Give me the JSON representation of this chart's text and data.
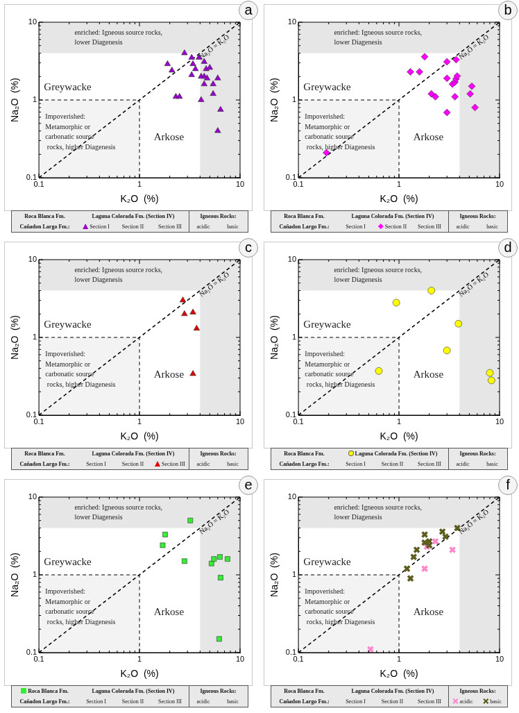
{
  "chart_data": [
    {
      "type": "scatter",
      "xlabel": "K₂O  (%)",
      "ylabel": "Na₂O  (%)",
      "log": "xy",
      "grid": false,
      "legend": "bottom",
      "xlim": [
        0.1,
        10
      ],
      "ylim": [
        0.1,
        10
      ],
      "xticks": [
        0.1,
        {
          "value": 0.2,
          "label": null
        },
        {
          "value": 0.3,
          "label": null
        },
        {
          "value": 0.4,
          "label": null
        },
        {
          "value": 0.5,
          "label": null
        },
        {
          "value": 0.6,
          "label": null
        },
        {
          "value": 0.7,
          "label": null
        },
        {
          "value": 0.8,
          "label": null
        },
        {
          "value": 0.9,
          "label": null
        },
        1,
        {
          "value": 2,
          "label": null
        },
        {
          "value": 3,
          "label": null
        },
        {
          "value": 4,
          "label": null
        },
        {
          "value": 5,
          "label": null
        },
        {
          "value": 6,
          "label": null
        },
        {
          "value": 7,
          "label": null
        },
        {
          "value": 8,
          "label": null
        },
        {
          "value": 9,
          "label": null
        },
        10
      ],
      "yticks": [
        0.1,
        {
          "value": 0.2,
          "label": null
        },
        {
          "value": 0.3,
          "label": null
        },
        {
          "value": 0.4,
          "label": null
        },
        {
          "value": 0.5,
          "label": null
        },
        {
          "value": 0.6,
          "label": null
        },
        {
          "value": 0.7,
          "label": null
        },
        {
          "value": 0.8,
          "label": null
        },
        {
          "value": 0.9,
          "label": null
        },
        1,
        {
          "value": 2,
          "label": null
        },
        {
          "value": 3,
          "label": null
        },
        {
          "value": 4,
          "label": null
        },
        {
          "value": 5,
          "label": null
        },
        {
          "value": 6,
          "label": null
        },
        {
          "value": 7,
          "label": null
        },
        {
          "value": 8,
          "label": null
        },
        {
          "value": 9,
          "label": null
        },
        10
      ],
      "bands": [
        {
          "axis": "y",
          "from": 4,
          "to": 10,
          "label": "enriched: Igneous source rocks,\nlower Diagenesis",
          "color": "#e6e6e6"
        },
        {
          "axis": "x",
          "from": 4,
          "to": 10,
          "color": "#e6e6e6"
        }
      ],
      "annotations": [
        "Greywacke",
        "Arkose",
        "Impoverished:\nMetamorphic or\ncarbonatic source\n rocks, higher Diagenesis",
        "a",
        "Roca Blanca Fm.",
        "Laguna Colorada Fm. (Section IV)",
        "Igneous Rocks:",
        "Cañadon Largo Fm.:",
        "Section II",
        "Section III",
        "acidic",
        "basic"
      ],
      "series": [
        {
          "type": "area",
          "color": "#f3f3f3",
          "line_style": "dashed",
          "x": [
            0.1,
            1,
            1
          ],
          "values": [
            1,
            1,
            0.1
          ]
        },
        {
          "type": "line",
          "name": "Na₂O = K₂O",
          "color": "#000000",
          "line_style": "dashed",
          "marker": "none",
          "x": [
            0.1,
            10
          ],
          "values": [
            0.1,
            10
          ]
        },
        {
          "name": "Section I",
          "color": "#9900cc",
          "marker": "triangle",
          "x": [
            2.8,
            1.9,
            2.1,
            2.3,
            2.5,
            3.3,
            3.4,
            3.6,
            3.3,
            3.9,
            4.4,
            4.6,
            5.0,
            4.1,
            4.4,
            4.7,
            4.4,
            5.4,
            6.0,
            5.4,
            4.1,
            6.4,
            6.0
          ],
          "values": [
            4.0,
            2.9,
            2.4,
            1.1,
            1.1,
            3.5,
            2.9,
            2.5,
            2.1,
            3.5,
            3.1,
            2.5,
            2.6,
            2.0,
            2.0,
            1.9,
            1.6,
            1.6,
            1.9,
            1.2,
            1.0,
            0.75,
            0.4
          ]
        }
      ]
    },
    {
      "type": "scatter",
      "xlabel": "K₂O  (%)",
      "ylabel": "Na₂O  (%)",
      "log": "xy",
      "grid": false,
      "legend": "bottom",
      "xlim": [
        0.1,
        10
      ],
      "ylim": [
        0.1,
        10
      ],
      "xticks": [
        0.1,
        {
          "value": 0.2,
          "label": null
        },
        {
          "value": 0.3,
          "label": null
        },
        {
          "value": 0.4,
          "label": null
        },
        {
          "value": 0.5,
          "label": null
        },
        {
          "value": 0.6,
          "label": null
        },
        {
          "value": 0.7,
          "label": null
        },
        {
          "value": 0.8,
          "label": null
        },
        {
          "value": 0.9,
          "label": null
        },
        1,
        {
          "value": 2,
          "label": null
        },
        {
          "value": 3,
          "label": null
        },
        {
          "value": 4,
          "label": null
        },
        {
          "value": 5,
          "label": null
        },
        {
          "value": 6,
          "label": null
        },
        {
          "value": 7,
          "label": null
        },
        {
          "value": 8,
          "label": null
        },
        {
          "value": 9,
          "label": null
        },
        10
      ],
      "yticks": [
        0.1,
        {
          "value": 0.2,
          "label": null
        },
        {
          "value": 0.3,
          "label": null
        },
        {
          "value": 0.4,
          "label": null
        },
        {
          "value": 0.5,
          "label": null
        },
        {
          "value": 0.6,
          "label": null
        },
        {
          "value": 0.7,
          "label": null
        },
        {
          "value": 0.8,
          "label": null
        },
        {
          "value": 0.9,
          "label": null
        },
        1,
        {
          "value": 2,
          "label": null
        },
        {
          "value": 3,
          "label": null
        },
        {
          "value": 4,
          "label": null
        },
        {
          "value": 5,
          "label": null
        },
        {
          "value": 6,
          "label": null
        },
        {
          "value": 7,
          "label": null
        },
        {
          "value": 8,
          "label": null
        },
        {
          "value": 9,
          "label": null
        },
        10
      ],
      "bands": [
        {
          "axis": "y",
          "from": 4,
          "to": 10,
          "label": "enriched: Igneous source rocks,\nlower Diagenesis",
          "color": "#e6e6e6"
        },
        {
          "axis": "x",
          "from": 4,
          "to": 10,
          "color": "#e6e6e6"
        }
      ],
      "annotations": [
        "Greywacke",
        "Arkose",
        "Impoverished:\nMetamorphic or\ncarbonatic source\n rocks, higher Diagenesis",
        "b",
        "Roca Blanca Fm.",
        "Laguna Colorada Fm. (Section IV)",
        "Igneous Rocks:",
        "Cañadon Largo Fm.:",
        "Section I",
        "Section III",
        "acidic",
        "basic"
      ],
      "series": [
        {
          "type": "area",
          "color": "#f3f3f3",
          "line_style": "dashed",
          "x": [
            0.1,
            1,
            1
          ],
          "values": [
            1,
            1,
            0.1
          ]
        },
        {
          "type": "line",
          "name": "Na₂O = K₂O",
          "color": "#000000",
          "line_style": "dashed",
          "marker": "none",
          "x": [
            0.1,
            10
          ],
          "values": [
            0.1,
            10
          ]
        },
        {
          "name": "Section II",
          "color": "#ff00ff",
          "marker": "diamond",
          "x": [
            0.19,
            1.3,
            1.6,
            1.8,
            2.1,
            2.3,
            3.0,
            3.7,
            3.0,
            3.4,
            3.6,
            3.69,
            3.79,
            3.6,
            3.0,
            5.1,
            5.3,
            5.7
          ],
          "values": [
            0.21,
            2.3,
            2.3,
            3.6,
            1.2,
            1.1,
            3.1,
            3.3,
            1.9,
            1.6,
            1.7,
            1.86,
            2.03,
            1.1,
            0.69,
            1.2,
            1.5,
            0.8
          ]
        }
      ]
    },
    {
      "type": "scatter",
      "xlabel": "K₂O  (%)",
      "ylabel": "Na₂O  (%)",
      "log": "xy",
      "grid": false,
      "legend": "bottom",
      "xlim": [
        0.1,
        10
      ],
      "ylim": [
        0.1,
        10
      ],
      "xticks": [
        0.1,
        {
          "value": 0.2,
          "label": null
        },
        {
          "value": 0.3,
          "label": null
        },
        {
          "value": 0.4,
          "label": null
        },
        {
          "value": 0.5,
          "label": null
        },
        {
          "value": 0.6,
          "label": null
        },
        {
          "value": 0.7,
          "label": null
        },
        {
          "value": 0.8,
          "label": null
        },
        {
          "value": 0.9,
          "label": null
        },
        1,
        {
          "value": 2,
          "label": null
        },
        {
          "value": 3,
          "label": null
        },
        {
          "value": 4,
          "label": null
        },
        {
          "value": 5,
          "label": null
        },
        {
          "value": 6,
          "label": null
        },
        {
          "value": 7,
          "label": null
        },
        {
          "value": 8,
          "label": null
        },
        {
          "value": 9,
          "label": null
        },
        10
      ],
      "yticks": [
        0.1,
        {
          "value": 0.2,
          "label": null
        },
        {
          "value": 0.3,
          "label": null
        },
        {
          "value": 0.4,
          "label": null
        },
        {
          "value": 0.5,
          "label": null
        },
        {
          "value": 0.6,
          "label": null
        },
        {
          "value": 0.7,
          "label": null
        },
        {
          "value": 0.8,
          "label": null
        },
        {
          "value": 0.9,
          "label": null
        },
        1,
        {
          "value": 2,
          "label": null
        },
        {
          "value": 3,
          "label": null
        },
        {
          "value": 4,
          "label": null
        },
        {
          "value": 5,
          "label": null
        },
        {
          "value": 6,
          "label": null
        },
        {
          "value": 7,
          "label": null
        },
        {
          "value": 8,
          "label": null
        },
        {
          "value": 9,
          "label": null
        },
        10
      ],
      "bands": [
        {
          "axis": "y",
          "from": 4,
          "to": 10,
          "label": "enriched: Igneous source rocks,\nlower Diagenesis",
          "color": "#e6e6e6"
        },
        {
          "axis": "x",
          "from": 4,
          "to": 10,
          "color": "#e6e6e6"
        }
      ],
      "annotations": [
        "Greywacke",
        "Arkose",
        "Impoverished:\nMetamorphic or\ncarbonatic source\n rocks, higher Diagenesis",
        "c",
        "Roca Blanca Fm.",
        "Laguna Colorada Fm. (Section IV)",
        "Igneous Rocks:",
        "Cañadon Largo Fm.:",
        "Section I",
        "Section II",
        "acidic",
        "basic"
      ],
      "series": [
        {
          "type": "area",
          "color": "#f3f3f3",
          "line_style": "dashed",
          "x": [
            0.1,
            1,
            1
          ],
          "values": [
            1,
            1,
            0.1
          ]
        },
        {
          "type": "line",
          "name": "Na₂O = K₂O",
          "color": "#000000",
          "line_style": "dashed",
          "marker": "none",
          "x": [
            0.1,
            10
          ],
          "values": [
            0.1,
            10
          ]
        },
        {
          "name": "Section III",
          "color": "#e00000",
          "marker": "triangle",
          "x": [
            2.7,
            2.8,
            3.4,
            3.7,
            3.4
          ],
          "values": [
            3.0,
            2.0,
            2.1,
            1.3,
            0.34
          ]
        }
      ]
    },
    {
      "type": "scatter",
      "xlabel": "K₂O  (%)",
      "ylabel": "Na₂O  (%)",
      "log": "xy",
      "grid": false,
      "legend": "bottom",
      "xlim": [
        0.1,
        10
      ],
      "ylim": [
        0.1,
        10
      ],
      "xticks": [
        0.1,
        {
          "value": 0.2,
          "label": null
        },
        {
          "value": 0.3,
          "label": null
        },
        {
          "value": 0.4,
          "label": null
        },
        {
          "value": 0.5,
          "label": null
        },
        {
          "value": 0.6,
          "label": null
        },
        {
          "value": 0.7,
          "label": null
        },
        {
          "value": 0.8,
          "label": null
        },
        {
          "value": 0.9,
          "label": null
        },
        1,
        {
          "value": 2,
          "label": null
        },
        {
          "value": 3,
          "label": null
        },
        {
          "value": 4,
          "label": null
        },
        {
          "value": 5,
          "label": null
        },
        {
          "value": 6,
          "label": null
        },
        {
          "value": 7,
          "label": null
        },
        {
          "value": 8,
          "label": null
        },
        {
          "value": 9,
          "label": null
        },
        10
      ],
      "yticks": [
        0.1,
        {
          "value": 0.2,
          "label": null
        },
        {
          "value": 0.3,
          "label": null
        },
        {
          "value": 0.4,
          "label": null
        },
        {
          "value": 0.5,
          "label": null
        },
        {
          "value": 0.6,
          "label": null
        },
        {
          "value": 0.7,
          "label": null
        },
        {
          "value": 0.8,
          "label": null
        },
        {
          "value": 0.9,
          "label": null
        },
        1,
        {
          "value": 2,
          "label": null
        },
        {
          "value": 3,
          "label": null
        },
        {
          "value": 4,
          "label": null
        },
        {
          "value": 5,
          "label": null
        },
        {
          "value": 6,
          "label": null
        },
        {
          "value": 7,
          "label": null
        },
        {
          "value": 8,
          "label": null
        },
        {
          "value": 9,
          "label": null
        },
        10
      ],
      "bands": [
        {
          "axis": "y",
          "from": 4,
          "to": 10,
          "label": "enriched: Igneous source rocks,\nlower Diagenesis",
          "color": "#e6e6e6"
        },
        {
          "axis": "x",
          "from": 4,
          "to": 10,
          "color": "#e6e6e6"
        }
      ],
      "annotations": [
        "Greywacke",
        "Arkose",
        "Impoverished:\nMetamorphic or\ncarbonatic source\n rocks, higher Diagenesis",
        "d",
        "Roca Blanca Fm.",
        "Igneous Rocks:",
        "Cañadon Largo Fm.:",
        "Section I",
        "Section II",
        "Section III",
        "acidic",
        "basic"
      ],
      "series": [
        {
          "type": "area",
          "color": "#f3f3f3",
          "line_style": "dashed",
          "x": [
            0.1,
            1,
            1
          ],
          "values": [
            1,
            1,
            0.1
          ]
        },
        {
          "type": "line",
          "name": "Na₂O = K₂O",
          "color": "#000000",
          "line_style": "dashed",
          "marker": "none",
          "x": [
            0.1,
            10
          ],
          "values": [
            0.1,
            10
          ]
        },
        {
          "name": "Laguna Colorada Fm. (Section IV)",
          "color": "#ffff00",
          "marker": "circle",
          "x": [
            0.63,
            0.94,
            2.1,
            3.9,
            3.0,
            8.0,
            8.3
          ],
          "values": [
            0.37,
            2.8,
            4.0,
            1.5,
            0.68,
            0.35,
            0.28
          ]
        }
      ]
    },
    {
      "type": "scatter",
      "xlabel": "K₂O  (%)",
      "ylabel": "Na₂O  (%)",
      "log": "xy",
      "grid": false,
      "legend": "bottom",
      "xlim": [
        0.1,
        10
      ],
      "ylim": [
        0.1,
        10
      ],
      "xticks": [
        0.1,
        {
          "value": 0.2,
          "label": null
        },
        {
          "value": 0.3,
          "label": null
        },
        {
          "value": 0.4,
          "label": null
        },
        {
          "value": 0.5,
          "label": null
        },
        {
          "value": 0.6,
          "label": null
        },
        {
          "value": 0.7,
          "label": null
        },
        {
          "value": 0.8,
          "label": null
        },
        {
          "value": 0.9,
          "label": null
        },
        1,
        {
          "value": 2,
          "label": null
        },
        {
          "value": 3,
          "label": null
        },
        {
          "value": 4,
          "label": null
        },
        {
          "value": 5,
          "label": null
        },
        {
          "value": 6,
          "label": null
        },
        {
          "value": 7,
          "label": null
        },
        {
          "value": 8,
          "label": null
        },
        {
          "value": 9,
          "label": null
        },
        10
      ],
      "yticks": [
        0.1,
        {
          "value": 0.2,
          "label": null
        },
        {
          "value": 0.3,
          "label": null
        },
        {
          "value": 0.4,
          "label": null
        },
        {
          "value": 0.5,
          "label": null
        },
        {
          "value": 0.6,
          "label": null
        },
        {
          "value": 0.7,
          "label": null
        },
        {
          "value": 0.8,
          "label": null
        },
        {
          "value": 0.9,
          "label": null
        },
        1,
        {
          "value": 2,
          "label": null
        },
        {
          "value": 3,
          "label": null
        },
        {
          "value": 4,
          "label": null
        },
        {
          "value": 5,
          "label": null
        },
        {
          "value": 6,
          "label": null
        },
        {
          "value": 7,
          "label": null
        },
        {
          "value": 8,
          "label": null
        },
        {
          "value": 9,
          "label": null
        },
        10
      ],
      "bands": [
        {
          "axis": "y",
          "from": 4,
          "to": 10,
          "label": "enriched: Igneous source rocks,\nlower Diagenesis",
          "color": "#e6e6e6"
        },
        {
          "axis": "x",
          "from": 4,
          "to": 10,
          "color": "#e6e6e6"
        }
      ],
      "annotations": [
        "Greywacke",
        "Arkose",
        "Impoverished:\nMetamorphic or\ncarbonatic source\n rocks, higher Diagenesis",
        "e",
        "Laguna Colorada Fm. (Section IV)",
        "Igneous Rocks:",
        "Cañadon Largo Fm.:",
        "Section I",
        "Section II",
        "Section III",
        "acidic",
        "basic"
      ],
      "series": [
        {
          "type": "area",
          "color": "#f3f3f3",
          "line_style": "dashed",
          "x": [
            0.1,
            1,
            1
          ],
          "values": [
            1,
            1,
            0.1
          ]
        },
        {
          "type": "line",
          "name": "Na₂O = K₂O",
          "color": "#000000",
          "line_style": "dashed",
          "marker": "none",
          "x": [
            0.1,
            10
          ],
          "values": [
            0.1,
            10
          ]
        },
        {
          "name": "Roca Blanca Fm.",
          "color": "#33ee33",
          "marker": "square",
          "x": [
            3.2,
            1.8,
            1.7,
            2.8,
            5.2,
            5.5,
            6.3,
            7.5,
            6.4,
            6.2
          ],
          "values": [
            5.0,
            3.3,
            2.4,
            1.5,
            1.4,
            1.6,
            1.7,
            1.6,
            0.92,
            0.15
          ]
        }
      ]
    },
    {
      "type": "scatter",
      "xlabel": "K₂O  (%)",
      "ylabel": "Na₂O  (%)",
      "log": "xy",
      "grid": false,
      "legend": "bottom",
      "xlim": [
        0.1,
        10
      ],
      "ylim": [
        0.1,
        10
      ],
      "xticks": [
        0.1,
        {
          "value": 0.2,
          "label": null
        },
        {
          "value": 0.3,
          "label": null
        },
        {
          "value": 0.4,
          "label": null
        },
        {
          "value": 0.5,
          "label": null
        },
        {
          "value": 0.6,
          "label": null
        },
        {
          "value": 0.7,
          "label": null
        },
        {
          "value": 0.8,
          "label": null
        },
        {
          "value": 0.9,
          "label": null
        },
        1,
        {
          "value": 2,
          "label": null
        },
        {
          "value": 3,
          "label": null
        },
        {
          "value": 4,
          "label": null
        },
        {
          "value": 5,
          "label": null
        },
        {
          "value": 6,
          "label": null
        },
        {
          "value": 7,
          "label": null
        },
        {
          "value": 8,
          "label": null
        },
        {
          "value": 9,
          "label": null
        },
        10
      ],
      "yticks": [
        0.1,
        {
          "value": 0.2,
          "label": null
        },
        {
          "value": 0.3,
          "label": null
        },
        {
          "value": 0.4,
          "label": null
        },
        {
          "value": 0.5,
          "label": null
        },
        {
          "value": 0.6,
          "label": null
        },
        {
          "value": 0.7,
          "label": null
        },
        {
          "value": 0.8,
          "label": null
        },
        {
          "value": 0.9,
          "label": null
        },
        1,
        {
          "value": 2,
          "label": null
        },
        {
          "value": 3,
          "label": null
        },
        {
          "value": 4,
          "label": null
        },
        {
          "value": 5,
          "label": null
        },
        {
          "value": 6,
          "label": null
        },
        {
          "value": 7,
          "label": null
        },
        {
          "value": 8,
          "label": null
        },
        {
          "value": 9,
          "label": null
        },
        10
      ],
      "bands": [
        {
          "axis": "y",
          "from": 4,
          "to": 10,
          "label": "enriched: Igneous source rocks,\nlower Diagenesis",
          "color": "#e6e6e6"
        },
        {
          "axis": "x",
          "from": 4,
          "to": 10,
          "color": "#e6e6e6"
        }
      ],
      "annotations": [
        "Greywacke",
        "Arkose",
        "Impoverished:\nMetamorphic or\ncarbonatic source\n rocks, higher Diagenesis",
        "f",
        "Roca Blanca Fm.",
        "Laguna Colorada Fm. (Section IV)",
        "Igneous Rocks:",
        "Cañadon Largo Fm.:",
        "Section I",
        "Section II",
        "Section III"
      ],
      "series": [
        {
          "type": "area",
          "color": "#f3f3f3",
          "line_style": "dashed",
          "x": [
            0.1,
            1,
            1
          ],
          "values": [
            1,
            1,
            0.1
          ]
        },
        {
          "type": "line",
          "name": "Na₂O = K₂O",
          "color": "#000000",
          "line_style": "dashed",
          "marker": "none",
          "x": [
            0.1,
            10
          ],
          "values": [
            0.1,
            10
          ]
        },
        {
          "name": "acidic",
          "color": "#ff88cc",
          "marker": "cross",
          "x": [
            2.3,
            1.9,
            3.4,
            1.8,
            0.52
          ],
          "values": [
            2.7,
            2.3,
            2.1,
            1.2,
            0.11
          ]
        },
        {
          "name": "basic",
          "color": "#5c5c1f",
          "marker": "cross",
          "x": [
            3.8,
            2.7,
            2.9,
            1.8,
            1.8,
            2.0,
            2.0,
            1.5,
            1.4,
            1.2,
            1.3
          ],
          "values": [
            4.0,
            3.6,
            3.1,
            3.3,
            2.6,
            2.7,
            2.4,
            2.1,
            1.7,
            1.2,
            0.9
          ]
        }
      ]
    }
  ]
}
